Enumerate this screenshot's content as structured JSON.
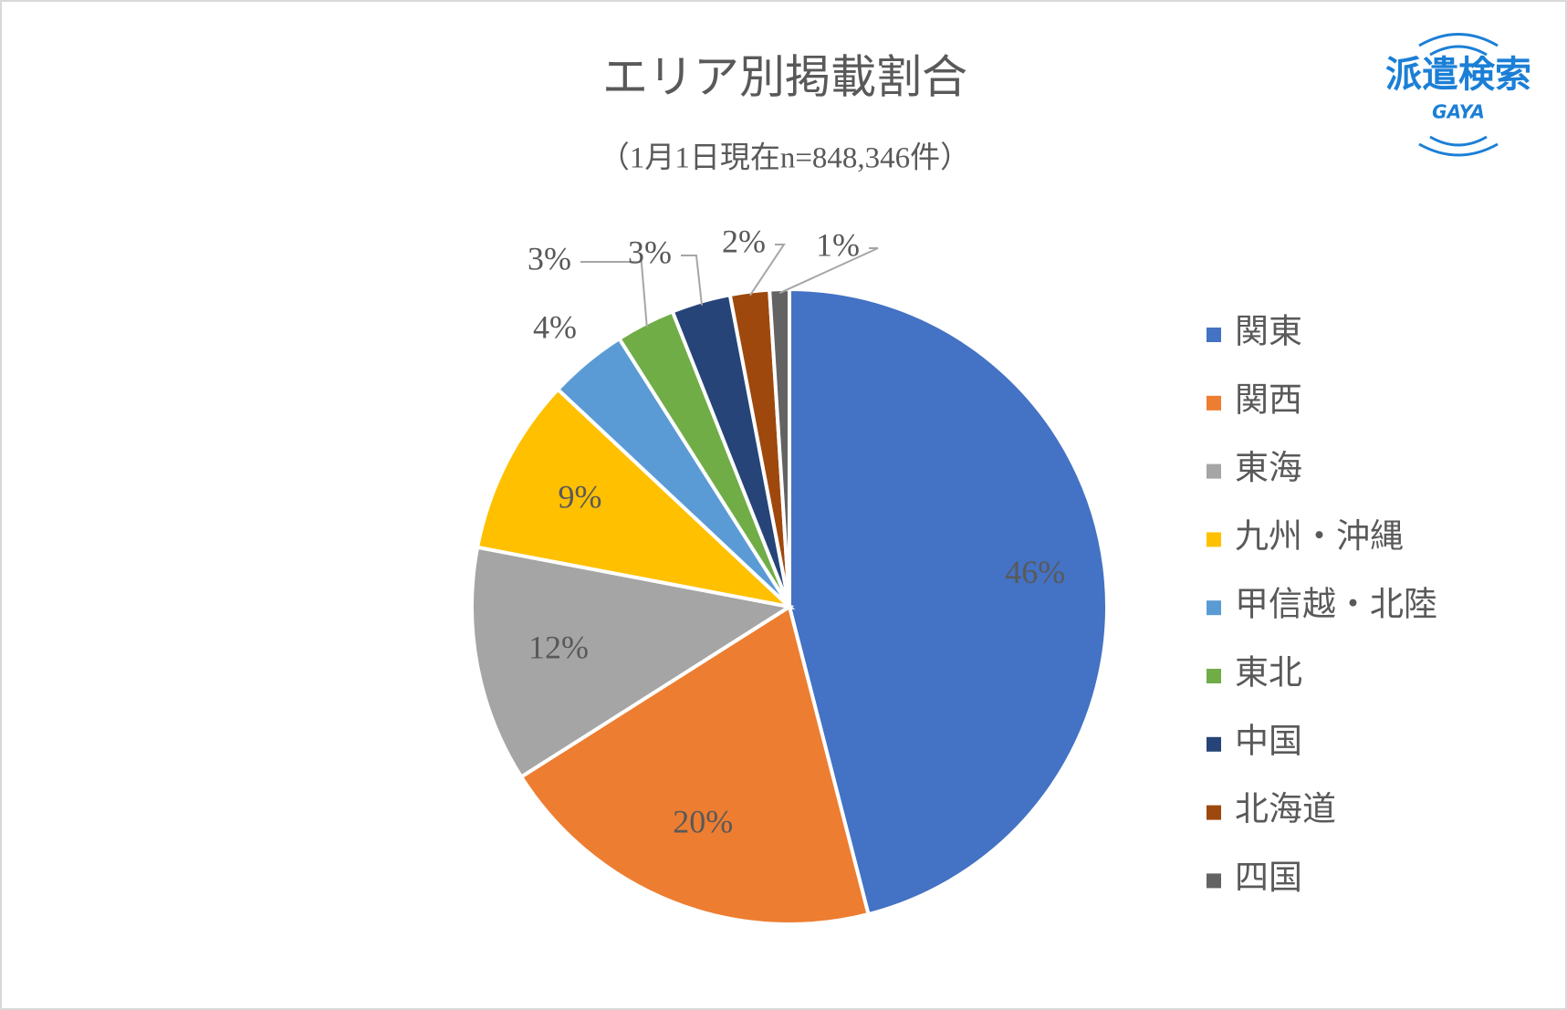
{
  "chart_data": {
    "type": "pie",
    "title": "エリア別掲載割合",
    "subtitle": "（1月1日現在n=848,346件）",
    "categories": [
      "関東",
      "関西",
      "東海",
      "九州・沖縄",
      "甲信越・北陸",
      "東北",
      "中国",
      "北海道",
      "四国"
    ],
    "values": [
      46,
      20,
      12,
      9,
      4,
      3,
      3,
      2,
      1
    ],
    "value_labels": [
      "46%",
      "20%",
      "12%",
      "9%",
      "4%",
      "3%",
      "3%",
      "2%",
      "1%"
    ],
    "colors": [
      "#4472c4",
      "#ed7d31",
      "#a5a5a5",
      "#ffc000",
      "#5b9bd5",
      "#70ad47",
      "#264478",
      "#9e480e",
      "#636363"
    ],
    "legend": "right"
  },
  "logo": {
    "name": "派遣検索",
    "sub": "GAYA"
  }
}
